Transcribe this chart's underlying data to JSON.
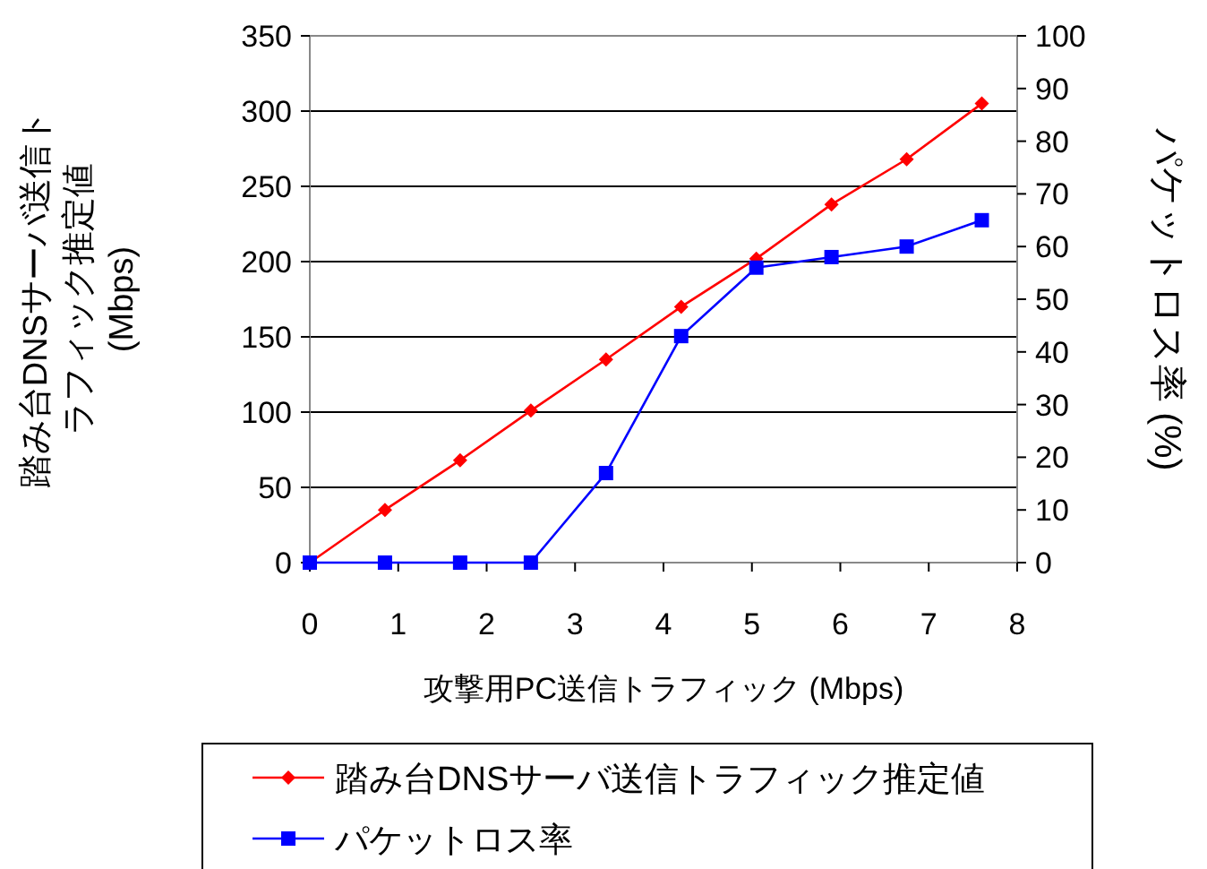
{
  "chart_data": {
    "type": "line",
    "xlabel": "攻撃用PC送信トラフィック (Mbps)",
    "ylabel": "踏み台DNSサーバ送信トラフィック推定値 (Mbps)",
    "y2label": "パケットロス率 (%)",
    "x": [
      0,
      0.85,
      1.7,
      2.5,
      3.35,
      4.2,
      5.05,
      5.9,
      6.75,
      7.6
    ],
    "series": [
      {
        "name": "踏み台DNSサーバ送信トラフィック推定値",
        "color": "#ff0000",
        "marker": "diamond",
        "values": [
          0,
          35,
          68,
          101,
          135,
          170,
          202,
          238,
          268,
          305
        ]
      },
      {
        "name": "パケットロス率",
        "color": "#0000ff",
        "marker": "square",
        "axis": "y2",
        "values": [
          0,
          0,
          0,
          0,
          17,
          43,
          56,
          58,
          60,
          65
        ]
      }
    ],
    "xlim": [
      0,
      8
    ],
    "xticks": [
      0,
      1,
      2,
      3,
      4,
      5,
      6,
      7,
      8
    ],
    "ylim": [
      0,
      350
    ],
    "yticks": [
      0,
      50,
      100,
      150,
      200,
      250,
      300,
      350
    ],
    "y2lim": [
      0,
      100
    ],
    "y2ticks": [
      0,
      10,
      20,
      30,
      40,
      50,
      60,
      70,
      80,
      90,
      100
    ],
    "grid": "y",
    "legend": "bottom"
  }
}
